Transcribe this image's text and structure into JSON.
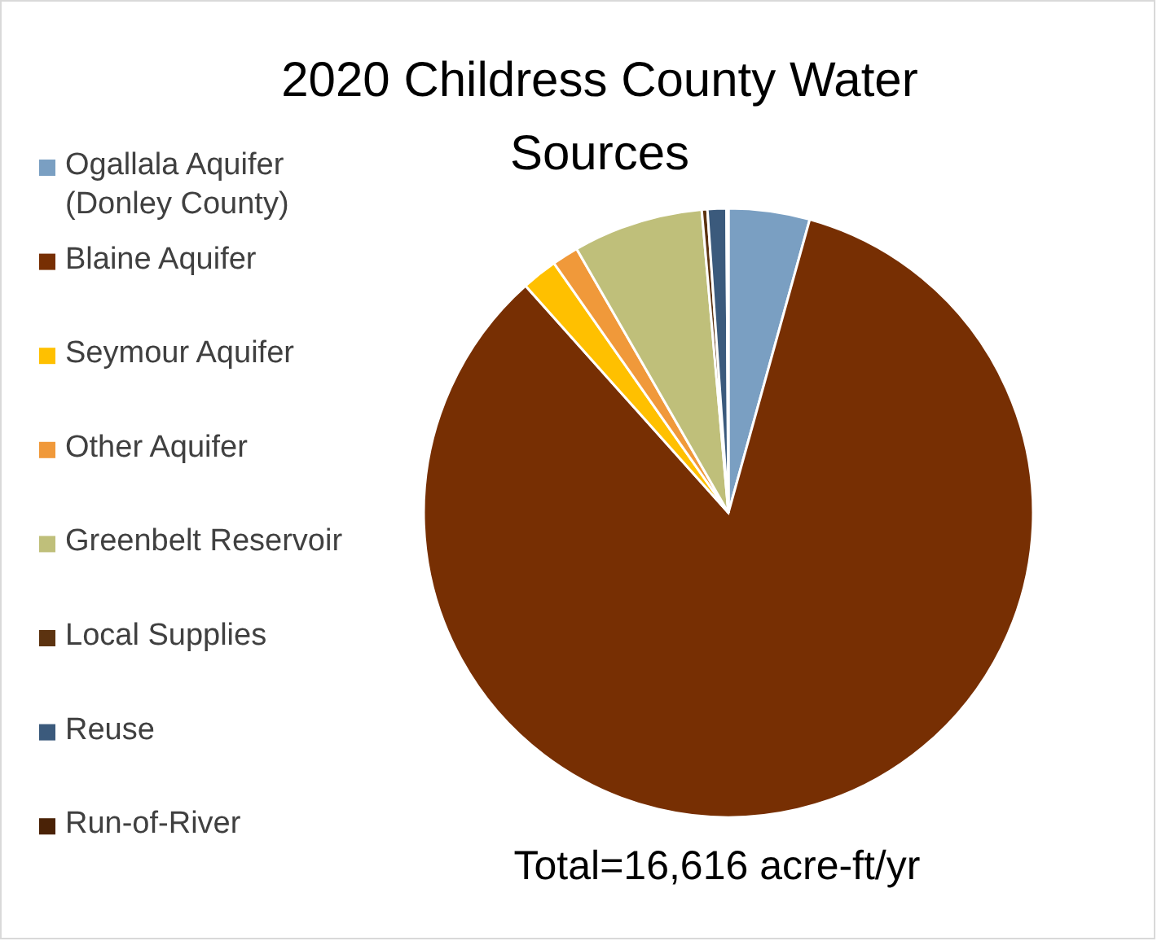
{
  "chart_data": {
    "type": "pie",
    "title": "2020 Childress County Water Sources",
    "categories": [
      "Ogallala Aquifer (Donley County)",
      "Blaine Aquifer",
      "Seymour Aquifer",
      "Other Aquifer",
      "Greenbelt Reservoir",
      "Local Supplies",
      "Reuse",
      "Run-of-River"
    ],
    "values": [
      4.3,
      84.1,
      1.9,
      1.4,
      6.9,
      0.3,
      1.0,
      0.1
    ],
    "colors": [
      "#7a9fc2",
      "#772f03",
      "#ffc000",
      "#f0993a",
      "#bfbf7a",
      "#5c3310",
      "#3b5a7c",
      "#4a2206"
    ],
    "legend": "left",
    "annotations": [
      "Total=16,616 acre-ft/yr"
    ]
  }
}
